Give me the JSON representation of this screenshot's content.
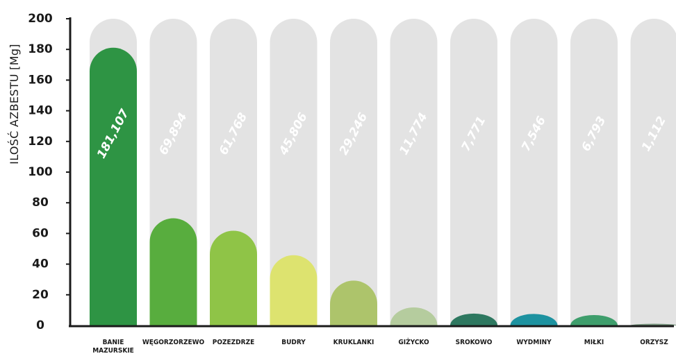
{
  "chart_data": {
    "type": "bar",
    "ylabel": "ILOŚĆ AZBESTU [Mg]",
    "xlabel": "",
    "ylim": [
      0,
      200
    ],
    "yticks": [
      0,
      20,
      40,
      60,
      80,
      100,
      120,
      140,
      160,
      180,
      200
    ],
    "categories": [
      [
        "BANIE",
        "MAZURSKIE"
      ],
      [
        "WĘGORZORZEWO"
      ],
      [
        "POZEZDRZE"
      ],
      [
        "BUDRY"
      ],
      [
        "KRUKLANKI"
      ],
      [
        "GIŻYCKO"
      ],
      [
        "SROKOWO"
      ],
      [
        "WYDMINY"
      ],
      [
        "MIŁKI"
      ],
      [
        "ORZYSZ"
      ]
    ],
    "values": [
      181.107,
      69.894,
      61.768,
      45.806,
      29.246,
      11.774,
      7.771,
      7.546,
      6.793,
      1.112
    ],
    "value_labels": [
      "181,107",
      "69,894",
      "61,768",
      "45,806",
      "29,246",
      "11,774",
      "7,771",
      "7,546",
      "6,793",
      "1,112"
    ],
    "colors": [
      "#2e9444",
      "#58ad3e",
      "#8fc447",
      "#dde36f",
      "#adc46b",
      "#b5cc9e",
      "#2e7860",
      "#1d92a0",
      "#3e9e6c",
      "#7a9880"
    ],
    "background_bar_color": "#e3e3e3",
    "axis_color": "#1a1a1a",
    "grid": false,
    "legend": "none"
  }
}
